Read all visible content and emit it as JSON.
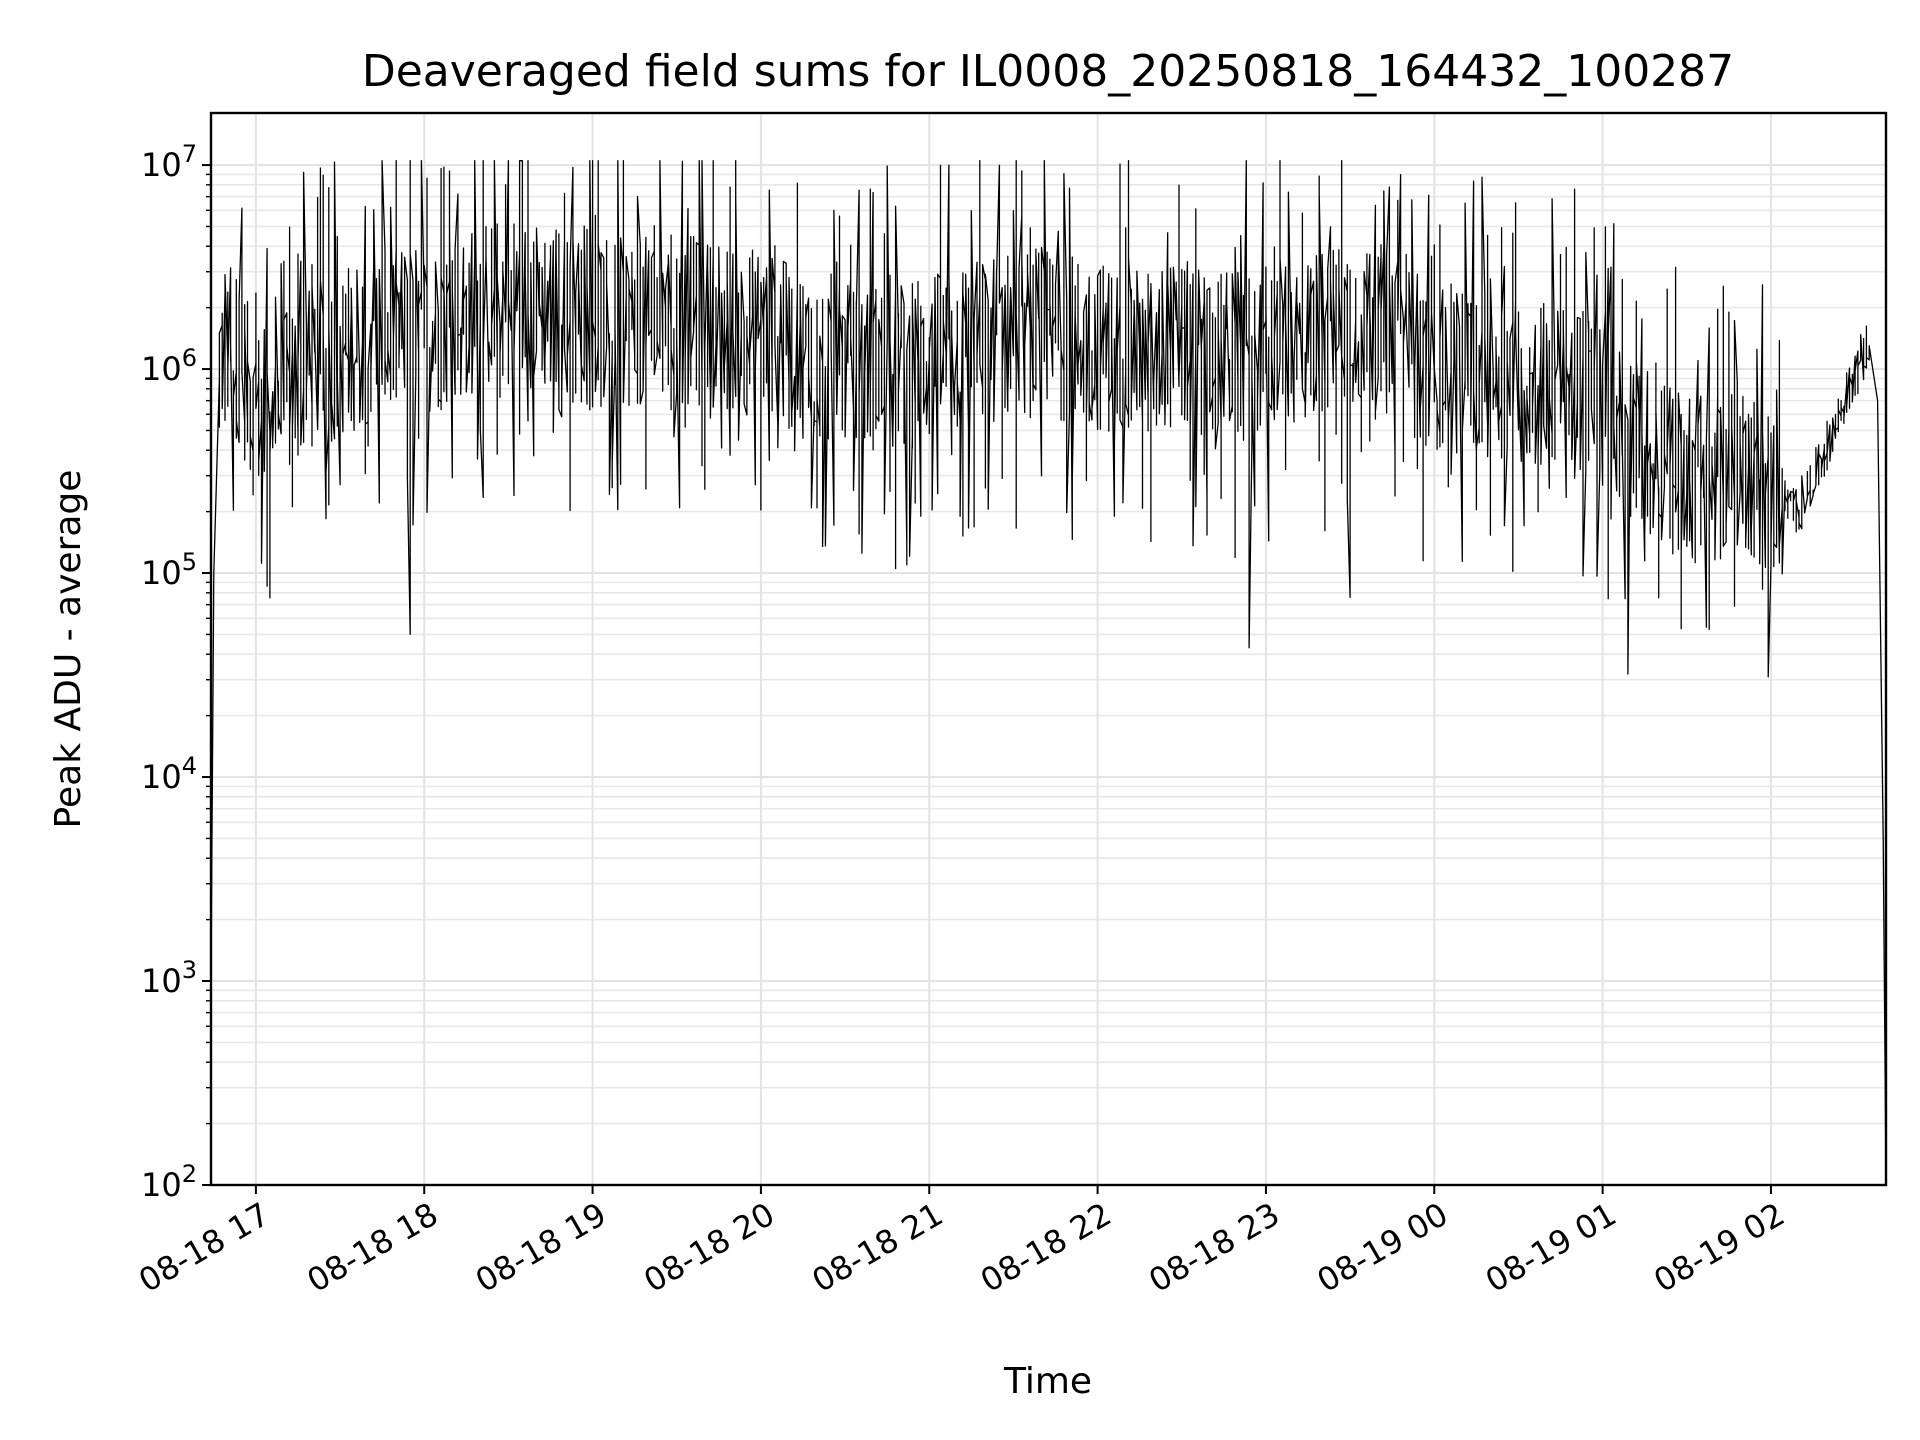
{
  "chart_data": {
    "type": "line",
    "title": "Deaveraged field sums for IL0008_20250818_164432_100287",
    "xlabel": "Time",
    "ylabel": "Peak ADU - average",
    "yscale": "log",
    "ylim": [
      100,
      18000000
    ],
    "xlim": [
      "2025-08-18 16:44",
      "2025-08-19 02:41"
    ],
    "grid": true,
    "x_tick_labels": [
      "08-18 17",
      "08-18 18",
      "08-18 19",
      "08-18 20",
      "08-18 21",
      "08-18 22",
      "08-18 23",
      "08-19 00",
      "08-19 01",
      "08-19 02"
    ],
    "x_tick_values": [
      "2025-08-18 17:00",
      "2025-08-18 18:00",
      "2025-08-18 19:00",
      "2025-08-18 20:00",
      "2025-08-18 21:00",
      "2025-08-18 22:00",
      "2025-08-18 23:00",
      "2025-08-19 00:00",
      "2025-08-19 01:00",
      "2025-08-19 02:00"
    ],
    "y_tick_labels": [
      {
        "base": "10",
        "exp": "2",
        "value": 100
      },
      {
        "base": "10",
        "exp": "3",
        "value": 1000
      },
      {
        "base": "10",
        "exp": "4",
        "value": 10000
      },
      {
        "base": "10",
        "exp": "5",
        "value": 100000
      },
      {
        "base": "10",
        "exp": "6",
        "value": 1000000
      },
      {
        "base": "10",
        "exp": "7",
        "value": 10000000
      }
    ],
    "series": [
      {
        "color": "#000000",
        "x": [
          "2025-08-18 16:44",
          "2025-08-18 16:45",
          "2025-08-18 16:47",
          "2025-08-18 16:50",
          "2025-08-18 16:55",
          "2025-08-18 17:00",
          "2025-08-18 17:10",
          "2025-08-18 17:20",
          "2025-08-18 17:30",
          "2025-08-18 17:40",
          "2025-08-18 17:50",
          "2025-08-18 17:55",
          "2025-08-18 18:00",
          "2025-08-18 18:10",
          "2025-08-18 18:20",
          "2025-08-18 18:30",
          "2025-08-18 18:40",
          "2025-08-18 18:50",
          "2025-08-18 19:00",
          "2025-08-18 19:15",
          "2025-08-18 19:30",
          "2025-08-18 19:45",
          "2025-08-18 20:00",
          "2025-08-18 20:15",
          "2025-08-18 20:30",
          "2025-08-18 20:45",
          "2025-08-18 21:00",
          "2025-08-18 21:15",
          "2025-08-18 21:30",
          "2025-08-18 21:45",
          "2025-08-18 22:00",
          "2025-08-18 22:15",
          "2025-08-18 22:30",
          "2025-08-18 22:45",
          "2025-08-18 22:55",
          "2025-08-18 23:00",
          "2025-08-18 23:15",
          "2025-08-18 23:30",
          "2025-08-18 23:45",
          "2025-08-19 00:00",
          "2025-08-19 00:15",
          "2025-08-19 00:30",
          "2025-08-19 00:45",
          "2025-08-19 01:00",
          "2025-08-19 01:10",
          "2025-08-19 01:20",
          "2025-08-19 01:30",
          "2025-08-19 01:40",
          "2025-08-19 01:50",
          "2025-08-19 02:00",
          "2025-08-19 02:10",
          "2025-08-19 02:20",
          "2025-08-19 02:30",
          "2025-08-19 02:35",
          "2025-08-19 02:38",
          "2025-08-19 02:40",
          "2025-08-19 02:41"
        ],
        "values": [
          1000,
          100000,
          900000,
          1300000,
          1100000,
          600000,
          700000,
          1000000,
          1200000,
          1400000,
          1500000,
          1600000,
          1500000,
          1700000,
          2000000,
          2200000,
          2100000,
          1900000,
          1600000,
          1700000,
          1800000,
          1600000,
          1500000,
          1200000,
          1100000,
          1000000,
          1100000,
          1300000,
          1500000,
          1500000,
          1300000,
          1200000,
          1300000,
          1200000,
          1100000,
          1300000,
          1400000,
          1800000,
          1500000,
          1000000,
          1000000,
          900000,
          800000,
          700000,
          500000,
          350000,
          300000,
          280000,
          350000,
          250000,
          200000,
          400000,
          900000,
          1300000,
          700000,
          5000,
          100
        ]
      }
    ],
    "spike_envelope": {
      "upper_peak": 10500000,
      "lower_dips": [
        {
          "x": "2025-08-18 17:55",
          "y": 50000
        },
        {
          "x": "2025-08-18 22:55",
          "y": 43000
        },
        {
          "x": "2025-08-18 23:30",
          "y": 76000
        },
        {
          "x": "2025-08-19 01:10",
          "y": 32000
        },
        {
          "x": "2025-08-19 02:00",
          "y": 31000
        }
      ]
    }
  }
}
